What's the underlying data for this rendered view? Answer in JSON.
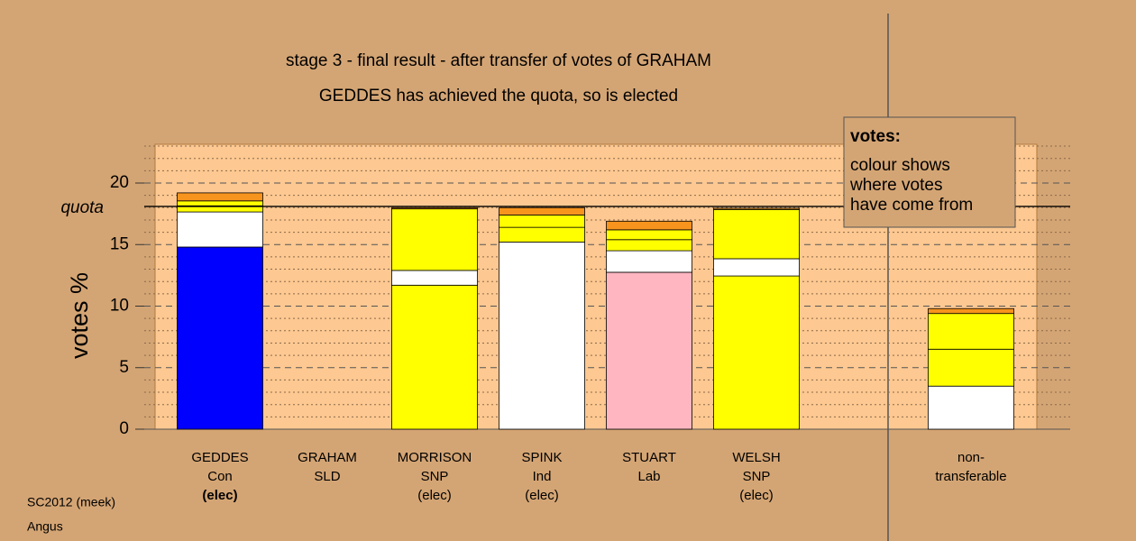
{
  "chart_data": {
    "type": "stacked_bar",
    "title": "stage 3 - final result - after transfer of votes of GRAHAM",
    "subtitle": "GEDDES has achieved the quota, so is elected",
    "y_label": "votes %",
    "categories": [
      [
        "GEDDES",
        "Con",
        "(elec)"
      ],
      [
        "GRAHAM",
        "SLD"
      ],
      [
        "MORRISON",
        "SNP",
        "(elec)"
      ],
      [
        "SPINK",
        "Ind",
        "(elec)"
      ],
      [
        "STUART",
        "Lab"
      ],
      [
        "WELSH",
        "SNP",
        "(elec)"
      ],
      null,
      [
        "non-",
        "transferable"
      ]
    ],
    "stacks": [
      [
        {
          "value": 14.8,
          "color": "#0000ff"
        },
        {
          "value": 2.85,
          "color": "#ffffff"
        },
        {
          "value": 0.5,
          "color": "#ffff00"
        },
        {
          "value": 0.4,
          "color": "#ffff00"
        },
        {
          "value": 0.65,
          "color": "#f7941d"
        }
      ],
      [
        {
          "value": 0,
          "color": "#ffff00"
        }
      ],
      [
        {
          "value": 11.7,
          "color": "#ffff00"
        },
        {
          "value": 1.2,
          "color": "#ffffff"
        },
        {
          "value": 5.0,
          "color": "#ffff00"
        },
        {
          "value": 0.1,
          "color": "#f7941d"
        }
      ],
      [
        {
          "value": 15.2,
          "color": "#ffffff"
        },
        {
          "value": 1.2,
          "color": "#ffff00"
        },
        {
          "value": 1.0,
          "color": "#ffff00"
        },
        {
          "value": 0.6,
          "color": "#f7941d"
        }
      ],
      [
        {
          "value": 12.75,
          "color": "#ffb6c1"
        },
        {
          "value": 1.75,
          "color": "#ffffff"
        },
        {
          "value": 0.9,
          "color": "#ffff00"
        },
        {
          "value": 0.8,
          "color": "#ffff00"
        },
        {
          "value": 0.7,
          "color": "#f7941d"
        }
      ],
      [
        {
          "value": 12.45,
          "color": "#ffff00"
        },
        {
          "value": 1.4,
          "color": "#ffffff"
        },
        {
          "value": 4.0,
          "color": "#ffff00"
        },
        {
          "value": 0.1,
          "color": "#f7941d"
        }
      ],
      null,
      [
        {
          "value": 3.5,
          "color": "#ffffff"
        },
        {
          "value": 3.0,
          "color": "#ffff00"
        },
        {
          "value": 2.9,
          "color": "#ffff00"
        },
        {
          "value": 0.4,
          "color": "#f7941d"
        }
      ]
    ],
    "quota": {
      "value": 18.1,
      "label": "quota"
    },
    "ylim": [
      0,
      23.15
    ],
    "yticks": [
      0,
      5,
      10,
      15,
      20
    ],
    "minor_yticks": [
      1,
      2,
      3,
      4,
      6,
      7,
      8,
      9,
      11,
      12,
      13,
      14,
      16,
      17,
      18,
      19,
      21,
      22,
      23
    ],
    "grid": true,
    "note": {
      "title": "votes:",
      "lines": [
        "colour shows",
        "where votes",
        "have come from"
      ]
    },
    "footnotes": [
      "SC2012 (meek)",
      "Angus"
    ]
  }
}
